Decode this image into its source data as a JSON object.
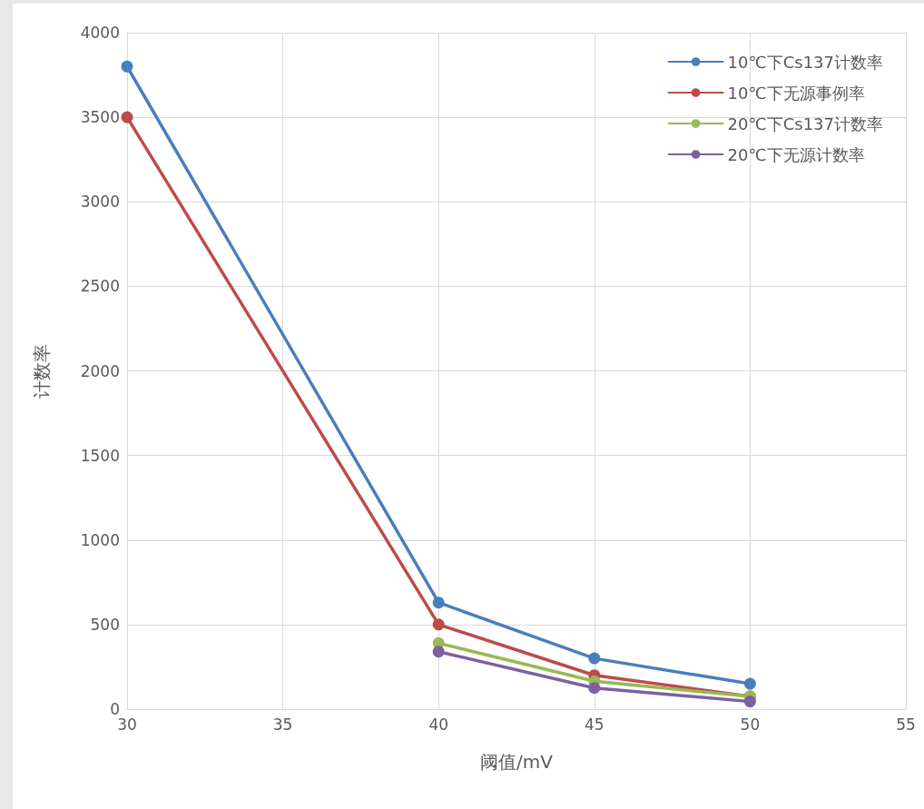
{
  "chart_data": {
    "type": "line",
    "xlabel": "阈值/mV",
    "ylabel": "计数率",
    "xlim": [
      30,
      55
    ],
    "xticks": [
      30,
      35,
      40,
      45,
      50,
      55
    ],
    "ylim": [
      0,
      4000
    ],
    "yticks": [
      0,
      500,
      1000,
      1500,
      2000,
      2500,
      3000,
      3500,
      4000
    ],
    "grid": true,
    "legend": "top right",
    "marker": "circle",
    "line_style": "solid",
    "series": [
      {
        "name": "10℃下Cs137计数率",
        "color": "#4a7ebb",
        "x": [
          30,
          40,
          45,
          50
        ],
        "values": [
          3800,
          630,
          300,
          150
        ]
      },
      {
        "name": "10℃下无源事例率",
        "color": "#be4b48",
        "x": [
          30,
          40,
          45,
          50
        ],
        "values": [
          3500,
          500,
          200,
          75
        ]
      },
      {
        "name": "20℃下Cs137计数率",
        "color": "#98b954",
        "x": [
          40,
          45,
          50
        ],
        "values": [
          390,
          165,
          75
        ]
      },
      {
        "name": "20℃下无源计数率",
        "color": "#7d60a0",
        "x": [
          40,
          45,
          50
        ],
        "values": [
          340,
          125,
          45
        ]
      }
    ]
  }
}
